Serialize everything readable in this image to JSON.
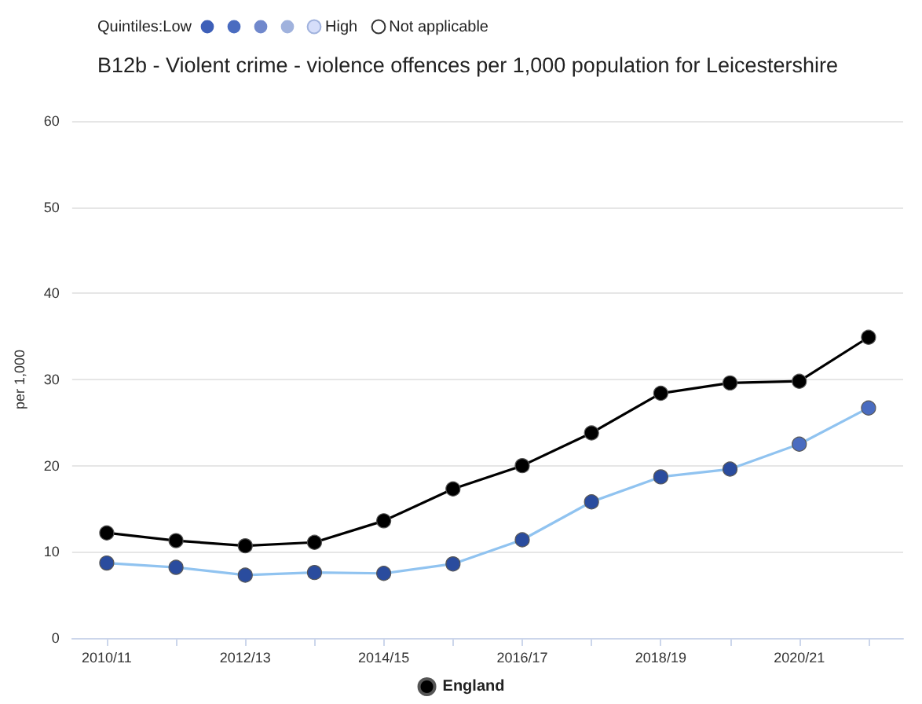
{
  "chart_data": {
    "type": "line",
    "title": "B12b - Violent crime - violence offences per 1,000 population for Leicestershire",
    "ylabel": "per 1,000",
    "annotations": [
      "Quintiles:Low",
      "High",
      "Not applicable"
    ],
    "categories": [
      "2010/11",
      null,
      "2012/13",
      null,
      "2014/15",
      null,
      "2016/17",
      null,
      "2018/19",
      null,
      "2020/21",
      null
    ],
    "series": [
      {
        "name": "England",
        "color": "#000000",
        "values": [
          12.2,
          11.3,
          10.7,
          11.1,
          13.6,
          17.3,
          20.0,
          23.8,
          28.4,
          29.6,
          29.8,
          34.9
        ]
      },
      {
        "color": "#90c3f0",
        "colors": [
          "#2a4c9e",
          "#2a4c9e",
          "#2a4c9e",
          "#2a4c9e",
          "#2a4c9e",
          "#2a4c9e",
          "#2a4c9e",
          "#2a4c9e",
          "#2a4c9e",
          "#2a4c9e",
          "#4a6cc0",
          "#4a6cc0"
        ],
        "values": [
          8.7,
          8.2,
          7.3,
          7.6,
          7.5,
          8.6,
          11.4,
          15.8,
          18.7,
          19.6,
          22.5,
          26.7
        ]
      }
    ],
    "ylim": [
      0,
      60
    ],
    "yticks": [
      0,
      10,
      20,
      30,
      40,
      50,
      60
    ],
    "grid": "y",
    "legend": "bottom",
    "marker": "circle",
    "line_style": "solid"
  }
}
